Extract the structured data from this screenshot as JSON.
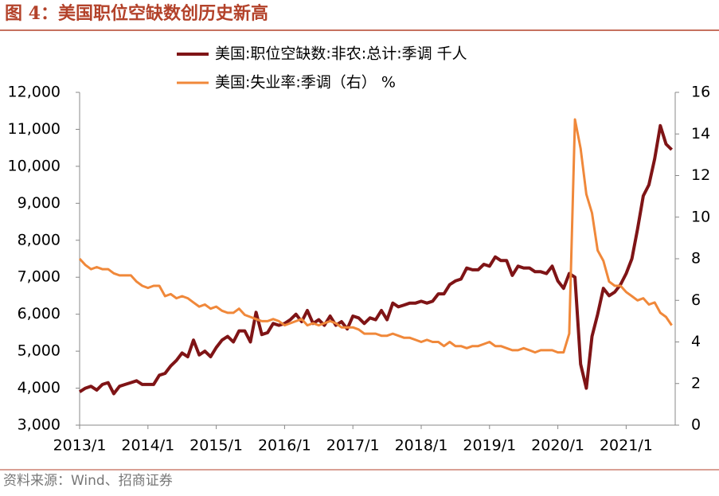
{
  "title": "图 4：美国职位空缺数创历史新高",
  "source": "资料来源：Wind、招商证券",
  "chart_data": {
    "type": "line",
    "categories": [
      "2013/1",
      null,
      null,
      null,
      null,
      null,
      null,
      null,
      null,
      null,
      null,
      null,
      "2014/1",
      null,
      null,
      null,
      null,
      null,
      null,
      null,
      null,
      null,
      null,
      null,
      "2015/1",
      null,
      null,
      null,
      null,
      null,
      null,
      null,
      null,
      null,
      null,
      null,
      "2016/1",
      null,
      null,
      null,
      null,
      null,
      null,
      null,
      null,
      null,
      null,
      null,
      "2017/1",
      null,
      null,
      null,
      null,
      null,
      null,
      null,
      null,
      null,
      null,
      null,
      "2018/1",
      null,
      null,
      null,
      null,
      null,
      null,
      null,
      null,
      null,
      null,
      null,
      "2019/1",
      null,
      null,
      null,
      null,
      null,
      null,
      null,
      null,
      null,
      null,
      null,
      "2020/1",
      null,
      null,
      null,
      null,
      null,
      null,
      null,
      null,
      null,
      null,
      null,
      "2021/1",
      null,
      null,
      null,
      null,
      null,
      null,
      null,
      null
    ],
    "series": [
      {
        "name": "美国:职位空缺数:非农:总计:季调 千人",
        "color": "#7f1416",
        "values": [
          3900,
          4000,
          4050,
          3950,
          4100,
          4150,
          3850,
          4050,
          4100,
          4150,
          4200,
          4100,
          4100,
          4100,
          4350,
          4400,
          4600,
          4750,
          4950,
          4850,
          5300,
          4900,
          5000,
          4850,
          5100,
          5300,
          5400,
          5250,
          5550,
          5550,
          5250,
          6050,
          5450,
          5500,
          5750,
          5700,
          5750,
          5850,
          6000,
          5800,
          6100,
          5750,
          5850,
          5700,
          5950,
          5700,
          5800,
          5600,
          5950,
          5900,
          5750,
          5900,
          5850,
          6100,
          5850,
          6300,
          6200,
          6250,
          6300,
          6300,
          6350,
          6300,
          6350,
          6550,
          6550,
          6800,
          6900,
          6950,
          7250,
          7200,
          7200,
          7350,
          7300,
          7550,
          7450,
          7450,
          7050,
          7300,
          7250,
          7250,
          7150,
          7150,
          7100,
          7300,
          6900,
          6700,
          7100,
          7000,
          4650,
          4000,
          5400,
          6000,
          6700,
          6500,
          6600,
          6800,
          7100,
          7500,
          8300,
          9200,
          9500,
          10200,
          11100,
          10600,
          10450
        ]
      },
      {
        "name": "美国:失业率:季调（右） %",
        "color": "#f0883a",
        "axis": "y2",
        "values": [
          8.0,
          7.7,
          7.5,
          7.6,
          7.5,
          7.5,
          7.3,
          7.2,
          7.2,
          7.2,
          6.9,
          6.7,
          6.6,
          6.7,
          6.7,
          6.2,
          6.3,
          6.1,
          6.2,
          6.1,
          5.9,
          5.7,
          5.8,
          5.6,
          5.7,
          5.5,
          5.4,
          5.4,
          5.6,
          5.3,
          5.2,
          5.1,
          5.0,
          5.0,
          5.1,
          5.0,
          4.8,
          4.9,
          5.0,
          5.1,
          4.8,
          4.9,
          4.8,
          4.9,
          5.0,
          4.9,
          4.7,
          4.7,
          4.7,
          4.6,
          4.4,
          4.4,
          4.4,
          4.3,
          4.3,
          4.4,
          4.3,
          4.2,
          4.2,
          4.1,
          4.0,
          4.1,
          4.0,
          4.0,
          3.8,
          4.0,
          3.8,
          3.8,
          3.7,
          3.8,
          3.8,
          3.9,
          4.0,
          3.8,
          3.8,
          3.7,
          3.6,
          3.6,
          3.7,
          3.6,
          3.5,
          3.6,
          3.6,
          3.6,
          3.5,
          3.5,
          4.4,
          14.7,
          13.3,
          11.1,
          10.2,
          8.4,
          7.9,
          6.9,
          6.7,
          6.7,
          6.4,
          6.2,
          6.0,
          6.1,
          5.8,
          5.9,
          5.4,
          5.2,
          4.8
        ]
      }
    ],
    "ylim": [
      3000,
      12000
    ],
    "yticks": [
      {
        "value": 3000,
        "label": "3,000"
      },
      {
        "value": 4000,
        "label": "4,000"
      },
      {
        "value": 5000,
        "label": "5,000"
      },
      {
        "value": 6000,
        "label": "6,000"
      },
      {
        "value": 7000,
        "label": "7,000"
      },
      {
        "value": 8000,
        "label": "8,000"
      },
      {
        "value": 9000,
        "label": "9,000"
      },
      {
        "value": 10000,
        "label": "10,000"
      },
      {
        "value": 11000,
        "label": "11,000"
      },
      {
        "value": 12000,
        "label": "12,000"
      }
    ],
    "y2lim": [
      0,
      16
    ],
    "y2ticks": [
      0,
      2,
      4,
      6,
      8,
      10,
      12,
      14,
      16
    ]
  }
}
